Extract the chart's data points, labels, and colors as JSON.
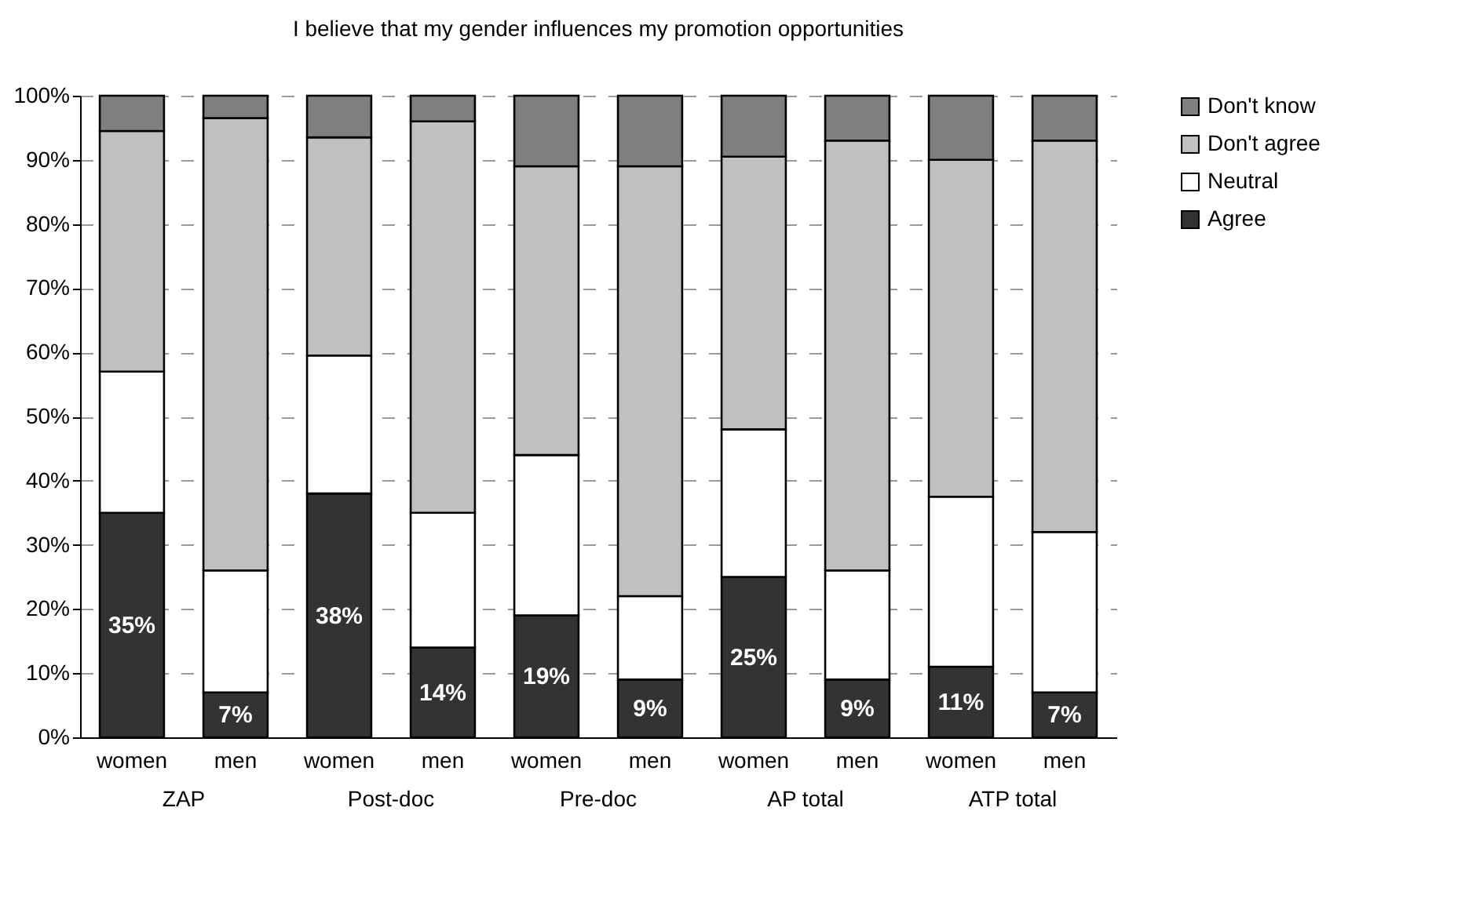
{
  "chart_data": {
    "type": "bar",
    "title": "I believe that my gender influences my promotion opportunities",
    "categories": [
      "women",
      "men",
      "women",
      "men",
      "women",
      "men",
      "women",
      "men",
      "women",
      "men"
    ],
    "stacked": true,
    "series": [
      {
        "name": "Agree",
        "color": "#333333",
        "values": [
          35,
          7,
          38,
          14,
          19,
          9,
          25,
          9,
          11,
          7
        ],
        "value_labels": [
          "35%",
          "7%",
          "38%",
          "14%",
          "19%",
          "9%",
          "25%",
          "9%",
          "11%",
          "7%"
        ]
      },
      {
        "name": "Neutral",
        "color": "#ffffff",
        "values": [
          22,
          19,
          21.5,
          21,
          25,
          13,
          23,
          17,
          26.5,
          25
        ]
      },
      {
        "name": "Don't agree",
        "color": "#c0c0c0",
        "values": [
          37.5,
          70.5,
          34,
          61,
          45,
          67,
          42.5,
          67,
          52.5,
          61
        ]
      },
      {
        "name": "Don't know",
        "color": "#7f7f7f",
        "values": [
          5.5,
          3.5,
          6.5,
          4,
          11,
          11,
          9.5,
          7,
          10,
          7
        ]
      }
    ],
    "ylim": [
      0,
      100
    ],
    "yticks": [
      {
        "value": 0,
        "label": "0%"
      },
      {
        "value": 10,
        "label": "10%"
      },
      {
        "value": 20,
        "label": "20%"
      },
      {
        "value": 30,
        "label": "30%"
      },
      {
        "value": 40,
        "label": "40%"
      },
      {
        "value": 50,
        "label": "50%"
      },
      {
        "value": 60,
        "label": "60%"
      },
      {
        "value": 70,
        "label": "70%"
      },
      {
        "value": 80,
        "label": "80%"
      },
      {
        "value": 90,
        "label": "90%"
      },
      {
        "value": 100,
        "label": "100%"
      }
    ],
    "grid": "y",
    "legend": "right",
    "annotations": [
      "ZAP",
      "Post-doc",
      "Pre-doc",
      "AP total",
      "ATP total"
    ]
  }
}
